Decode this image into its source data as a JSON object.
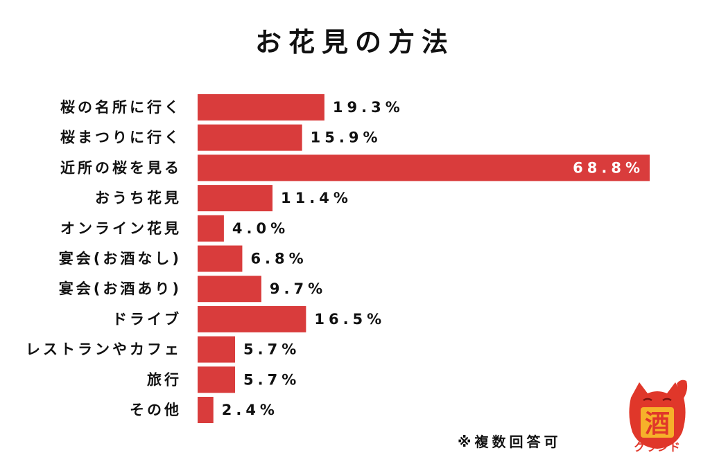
{
  "chart_data": {
    "type": "bar",
    "orientation": "horizontal",
    "title": "お花見の方法",
    "categories": [
      "桜の名所に行く",
      "桜まつりに行く",
      "近所の桜を見る",
      "おうち花見",
      "オンライン花見",
      "宴会(お酒なし)",
      "宴会(お酒あり)",
      "ドライブ",
      "レストランやカフェ",
      "旅行",
      "その他"
    ],
    "values": [
      19.3,
      15.9,
      68.8,
      11.4,
      4.0,
      6.8,
      9.7,
      16.5,
      5.7,
      5.7,
      2.4
    ],
    "value_labels": [
      "19.3%",
      "15.9%",
      "68.8%",
      "11.4%",
      "4.0%",
      "6.8%",
      "9.7%",
      "16.5%",
      "5.7%",
      "5.7%",
      "2.4%"
    ],
    "xlim": [
      0,
      68.8
    ],
    "bar_color": "#d93c3c",
    "grid": false,
    "xlabel": "",
    "ylabel": ""
  },
  "footnote": "※複数回答可",
  "logo": {
    "mascot_character": "酒",
    "brand_name": "クランド",
    "brand_color": "#e0372a"
  }
}
